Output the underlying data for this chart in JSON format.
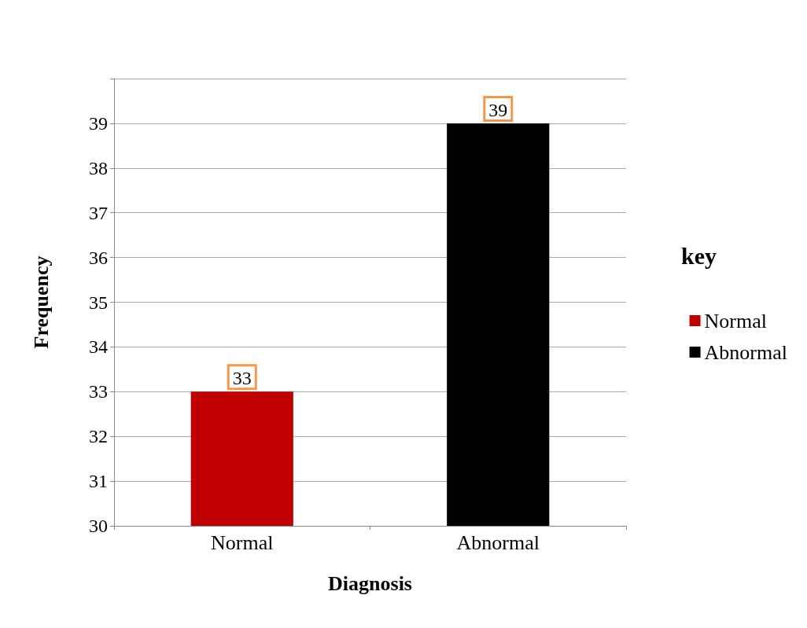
{
  "chart_data": {
    "type": "bar",
    "xlabel": "Diagnosis",
    "ylabel": "Frequency",
    "legend_title": "key",
    "categories": [
      "Normal",
      "Abnormal"
    ],
    "series": [
      {
        "name": "Normal",
        "color": "#c00000",
        "values": [
          33,
          null
        ]
      },
      {
        "name": "Abnormal",
        "color": "#000000",
        "values": [
          null,
          39
        ]
      }
    ],
    "ylim": [
      30,
      40
    ],
    "yticks": [
      30,
      31,
      32,
      33,
      34,
      35,
      36,
      37,
      38,
      39,
      {
        "value": 40,
        "label": null
      }
    ],
    "grid": "y",
    "legend": "right",
    "data_labels": true
  }
}
